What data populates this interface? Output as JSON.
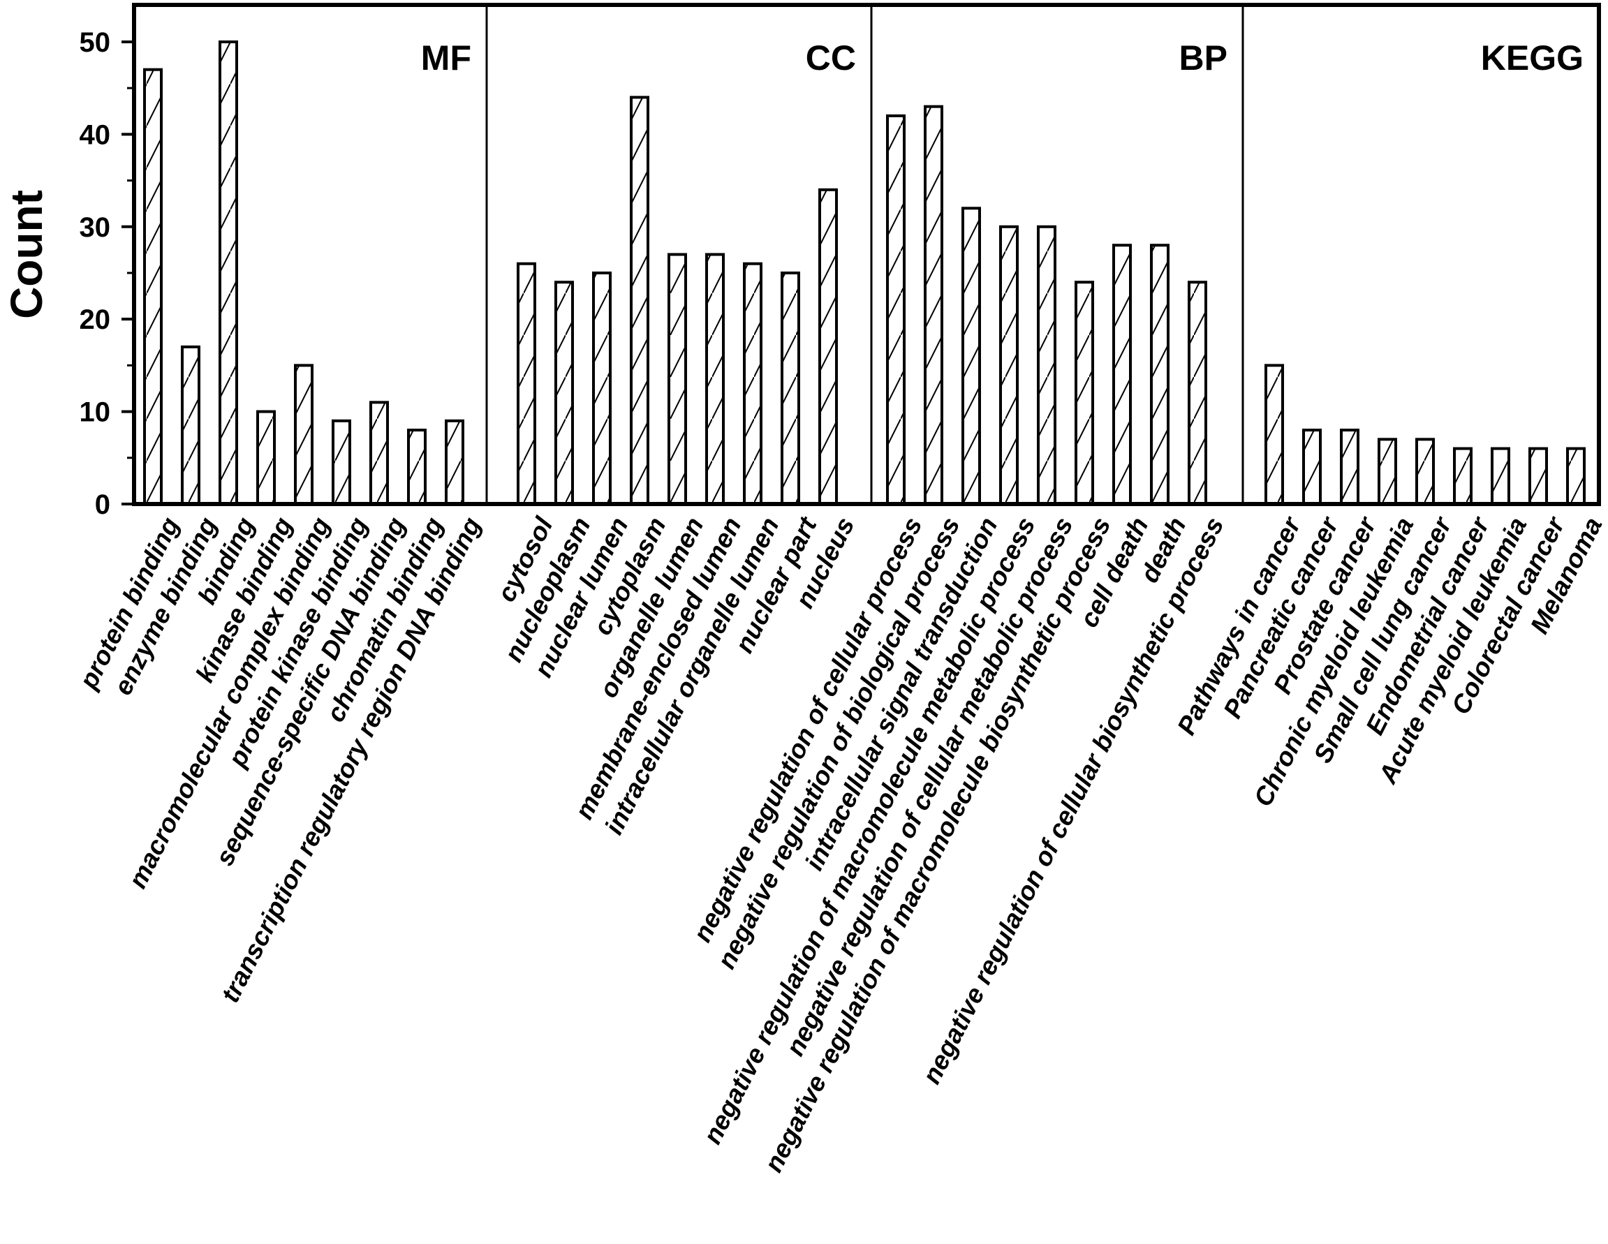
{
  "chart_data": {
    "type": "bar",
    "ylabel": "Count",
    "xlabel": "",
    "ylim": [
      0,
      54
    ],
    "yticks": [
      0,
      10,
      20,
      30,
      40,
      50
    ],
    "grid": false,
    "bar_style": "hatched",
    "colors": {
      "bar_fill": "#ffffff",
      "bar_stroke": "#000000",
      "hatch": "#000000"
    },
    "panels": [
      {
        "name": "MF",
        "categories": [
          "protein binding",
          "enzyme binding",
          "binding",
          "kinase binding",
          "macromolecular complex binding",
          "protein kinase binding",
          "sequence-specific DNA binding",
          "chromatin binding",
          "transcription regulatory region DNA binding"
        ],
        "values": [
          47,
          17,
          50,
          10,
          15,
          9,
          11,
          8,
          9
        ]
      },
      {
        "name": "CC",
        "categories": [
          "cytosol",
          "nucleoplasm",
          "nuclear lumen",
          "cytoplasm",
          "organelle lumen",
          "membrane-enclosed lumen",
          "intracellular organelle lumen",
          "nuclear part",
          "nucleus"
        ],
        "values": [
          26,
          24,
          25,
          44,
          27,
          27,
          26,
          25,
          34
        ]
      },
      {
        "name": "BP",
        "categories": [
          "negative regulation of cellular process",
          "negative regulation of biological process",
          "intracellular signal transduction",
          "negative regulation of macromolecule metabolic process",
          "negative regulation of cellular metabolic process",
          "negative regulation of macromolecule biosynthetic process",
          "cell death",
          "death",
          "negative regulation of cellular biosynthetic process"
        ],
        "values": [
          42,
          43,
          32,
          30,
          30,
          24,
          28,
          28,
          24
        ]
      },
      {
        "name": "KEGG",
        "categories": [
          "Pathways in cancer",
          "Pancreatic cancer",
          "Prostate cancer",
          "Chronic myeloid leukemia",
          "Small cell lung cancer",
          "Endometrial cancer",
          "Acute myeloid leukemia",
          "Colorectal cancer",
          "Melanoma"
        ],
        "values": [
          15,
          8,
          8,
          7,
          7,
          6,
          6,
          6,
          6
        ]
      }
    ]
  }
}
